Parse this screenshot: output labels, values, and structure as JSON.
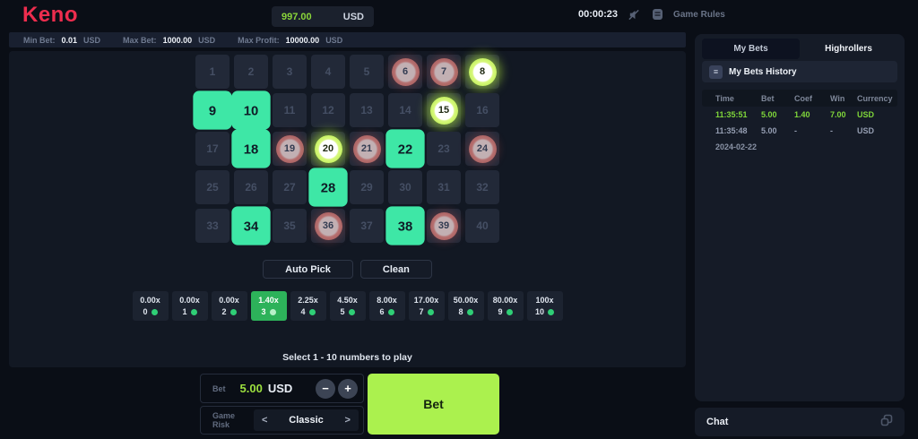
{
  "header": {
    "logo": "Keno",
    "balance": {
      "amount": "997.00",
      "currency": "USD"
    },
    "timer": "00:00:23",
    "game_rules_label": "Game Rules"
  },
  "limits": {
    "min": {
      "label": "Min Bet:",
      "value": "0.01",
      "unit": "USD"
    },
    "max": {
      "label": "Max Bet:",
      "value": "1000.00",
      "unit": "USD"
    },
    "profit": {
      "label": "Max Profit:",
      "value": "10000.00",
      "unit": "USD"
    }
  },
  "board": {
    "count": 40,
    "selected": [
      9,
      10,
      18,
      22,
      28,
      34,
      38
    ],
    "hits": [
      8,
      15,
      20
    ],
    "misses": [
      6,
      7,
      19,
      21,
      24,
      36,
      39
    ]
  },
  "actions": {
    "auto_pick": "Auto Pick",
    "clean": "Clean"
  },
  "payouts": {
    "active_index": 3,
    "tiles": [
      {
        "multiplier": "0.00x",
        "hits": "0"
      },
      {
        "multiplier": "0.00x",
        "hits": "1"
      },
      {
        "multiplier": "0.00x",
        "hits": "2"
      },
      {
        "multiplier": "1.40x",
        "hits": "3"
      },
      {
        "multiplier": "2.25x",
        "hits": "4"
      },
      {
        "multiplier": "4.50x",
        "hits": "5"
      },
      {
        "multiplier": "8.00x",
        "hits": "6"
      },
      {
        "multiplier": "17.00x",
        "hits": "7"
      },
      {
        "multiplier": "50.00x",
        "hits": "8"
      },
      {
        "multiplier": "80.00x",
        "hits": "9"
      },
      {
        "multiplier": "100x",
        "hits": "10"
      }
    ]
  },
  "hint": "Select 1 - 10 numbers to play",
  "bet_controls": {
    "bet_label": "Bet",
    "bet_amount": "5.00",
    "currency": "USD",
    "minus": "−",
    "plus": "+",
    "risk_label": "Game Risk",
    "risk_value": "Classic",
    "chev_left": "<",
    "chev_right": ">",
    "bet_button": "Bet"
  },
  "sidebar": {
    "tabs": [
      {
        "label": "My Bets",
        "active": true
      },
      {
        "label": "Highrollers",
        "active": false
      }
    ],
    "history_title": "My Bets History",
    "table": {
      "headers": [
        "Time",
        "Bet",
        "Coef",
        "Win",
        "Currency"
      ],
      "rows": [
        {
          "time": "11:35:51",
          "bet": "5.00",
          "coef": "1.40",
          "win": "7.00",
          "currency": "USD",
          "highlight": true
        },
        {
          "time": "11:35:48",
          "bet": "5.00",
          "coef": "-",
          "win": "-",
          "currency": "USD",
          "highlight": false
        }
      ],
      "date_row": "2024-02-22"
    }
  },
  "chat": {
    "label": "Chat"
  },
  "colors": {
    "accent_red": "#ed2d4e",
    "selected_green": "#3ee7a6",
    "hit_lime": "#a6e933",
    "bet_button_lime": "#abf14e",
    "win_text_green": "#7fd63a",
    "payout_active_green": "#2db25a",
    "miss_red": "#9c4e4e"
  }
}
